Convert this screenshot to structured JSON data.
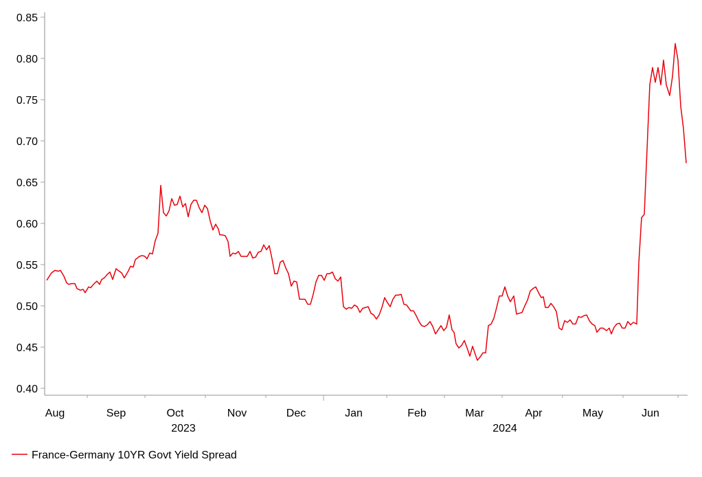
{
  "chart_data": {
    "type": "line",
    "title": "",
    "xlabel": "",
    "ylabel": "",
    "x_unit": "business-day index from start of series",
    "ylim": [
      0.4,
      0.85
    ],
    "xlim": [
      0,
      233
    ],
    "grid": false,
    "y_ticks": [
      "0.40",
      "0.45",
      "0.50",
      "0.55",
      "0.60",
      "0.65",
      "0.70",
      "0.75",
      "0.80",
      "0.85"
    ],
    "y_tick_values": [
      0.4,
      0.45,
      0.5,
      0.55,
      0.6,
      0.65,
      0.7,
      0.75,
      0.8,
      0.85
    ],
    "month_ticks": [
      15,
      36,
      58,
      80,
      101,
      124,
      145,
      166,
      188,
      210,
      230
    ],
    "year_boundary_tick": 101,
    "month_labels": [
      {
        "label": "Aug",
        "pos": 3.25
      },
      {
        "label": "Sep",
        "pos": 25.5
      },
      {
        "label": "Oct",
        "pos": 47
      },
      {
        "label": "Nov",
        "pos": 69.5
      },
      {
        "label": "Dec",
        "pos": 91
      },
      {
        "label": "Jan",
        "pos": 112
      },
      {
        "label": "Feb",
        "pos": 135
      },
      {
        "label": "Mar",
        "pos": 156
      },
      {
        "label": "Apr",
        "pos": 177.5
      },
      {
        "label": "May",
        "pos": 199
      },
      {
        "label": "Jun",
        "pos": 220
      }
    ],
    "year_labels": [
      {
        "label": "2023",
        "pos": 50
      },
      {
        "label": "2024",
        "pos": 167
      }
    ],
    "legend_position": "bottom-left",
    "series": [
      {
        "name": "France-Germany 10YR Govt Yield Spread",
        "color": "#e8000b",
        "x": [
          0.25,
          2,
          3.25,
          4.5,
          5.25,
          6.5,
          7.5,
          8.25,
          9.25,
          10.5,
          11.25,
          12.5,
          13.5,
          14.25,
          15.5,
          16.25,
          17.25,
          18.5,
          19.5,
          20.25,
          21.25,
          22.25,
          23.25,
          24.25,
          25.5,
          26.25,
          27.5,
          28.5,
          29.75,
          30.75,
          31.75,
          32.5,
          34,
          35,
          36,
          36.75,
          37.75,
          38.75,
          39.75,
          40.75,
          41.75,
          42.75,
          43.75,
          44.75,
          45.75,
          46.75,
          47.75,
          48.75,
          49.75,
          50.75,
          51.75,
          52.75,
          53.75,
          54.75,
          55.75,
          56.75,
          57.75,
          58.75,
          59.75,
          60.75,
          61.75,
          62.75,
          63.25,
          64.25,
          65.25,
          66.25,
          67,
          68,
          69,
          70,
          71,
          72.25,
          73.25,
          74.25,
          75.25,
          76.25,
          77.25,
          78.25,
          79.25,
          80.25,
          81.25,
          82.25,
          83.25,
          84.25,
          85.25,
          86.25,
          87.25,
          88.25,
          89.25,
          90.25,
          91.25,
          92.25,
          93.25,
          94.25,
          95.25,
          96.25,
          97.25,
          98.25,
          99.25,
          100.25,
          101.25,
          102.25,
          103.25,
          104.25,
          105.25,
          106.25,
          107.25,
          108.25,
          109.25,
          110.25,
          111.25,
          112.25,
          113.25,
          114.25,
          115.25,
          116.25,
          117.25,
          118.25,
          119.25,
          120.25,
          121.25,
          122.25,
          123.25,
          124.25,
          125.25,
          126.25,
          127.25,
          128.25,
          129.25,
          130.25,
          131.25,
          132.75,
          133.75,
          134.75,
          135.75,
          136.75,
          137.75,
          138.75,
          139.75,
          140.75,
          141.75,
          142.75,
          143.75,
          144.75,
          145.75,
          146.75,
          147.75,
          148.5,
          149.25,
          150.25,
          151.25,
          152.25,
          153.25,
          154.25,
          155.25,
          156.25,
          157,
          158,
          159,
          160,
          161,
          162,
          163,
          164,
          165,
          166,
          167,
          168,
          169,
          170.25,
          171.25,
          172.25,
          173.25,
          174.25,
          175.25,
          176.25,
          177.25,
          178.25,
          179.25,
          180.25,
          181,
          181.75,
          182.75,
          183.75,
          184.75,
          185.75,
          186.75,
          187.75,
          188.75,
          189.75,
          190.75,
          191.75,
          192.75,
          193.75,
          194.75,
          195.75,
          196.75,
          197.75,
          198.75,
          199.75,
          200.5,
          201.75,
          202.75,
          204,
          205,
          205.75,
          206.75,
          207.75,
          208.75,
          209.75,
          210.75,
          211.75,
          212.75,
          213.75,
          215,
          215.75,
          216.75,
          217.75,
          218.75,
          219.75,
          220.75,
          221.75,
          222.75,
          223.75,
          224.75,
          225.75,
          227,
          228,
          229,
          230,
          231,
          232,
          233
        ],
        "y": [
          0.531,
          0.54,
          0.543,
          0.542,
          0.543,
          0.536,
          0.528,
          0.526,
          0.527,
          0.527,
          0.521,
          0.519,
          0.52,
          0.516,
          0.523,
          0.522,
          0.526,
          0.53,
          0.526,
          0.532,
          0.534,
          0.538,
          0.541,
          0.532,
          0.545,
          0.543,
          0.54,
          0.534,
          0.541,
          0.548,
          0.547,
          0.556,
          0.56,
          0.561,
          0.56,
          0.557,
          0.564,
          0.563,
          0.579,
          0.588,
          0.646,
          0.613,
          0.609,
          0.615,
          0.63,
          0.622,
          0.623,
          0.633,
          0.62,
          0.624,
          0.608,
          0.623,
          0.628,
          0.628,
          0.619,
          0.613,
          0.622,
          0.618,
          0.603,
          0.592,
          0.599,
          0.593,
          0.586,
          0.586,
          0.585,
          0.578,
          0.56,
          0.564,
          0.563,
          0.566,
          0.56,
          0.56,
          0.56,
          0.566,
          0.558,
          0.559,
          0.565,
          0.566,
          0.574,
          0.568,
          0.573,
          0.557,
          0.539,
          0.539,
          0.553,
          0.555,
          0.546,
          0.539,
          0.524,
          0.53,
          0.529,
          0.508,
          0.508,
          0.508,
          0.502,
          0.502,
          0.514,
          0.529,
          0.537,
          0.537,
          0.531,
          0.539,
          0.539,
          0.541,
          0.533,
          0.53,
          0.535,
          0.499,
          0.496,
          0.498,
          0.497,
          0.501,
          0.499,
          0.492,
          0.497,
          0.498,
          0.499,
          0.491,
          0.489,
          0.484,
          0.489,
          0.498,
          0.51,
          0.504,
          0.499,
          0.508,
          0.513,
          0.513,
          0.514,
          0.502,
          0.501,
          0.494,
          0.494,
          0.488,
          0.481,
          0.476,
          0.475,
          0.477,
          0.481,
          0.475,
          0.466,
          0.471,
          0.476,
          0.47,
          0.474,
          0.489,
          0.471,
          0.468,
          0.454,
          0.449,
          0.452,
          0.458,
          0.449,
          0.439,
          0.451,
          0.441,
          0.434,
          0.438,
          0.443,
          0.443,
          0.476,
          0.478,
          0.485,
          0.498,
          0.512,
          0.512,
          0.523,
          0.512,
          0.505,
          0.512,
          0.49,
          0.491,
          0.492,
          0.5,
          0.507,
          0.518,
          0.521,
          0.523,
          0.516,
          0.51,
          0.511,
          0.498,
          0.498,
          0.503,
          0.499,
          0.493,
          0.473,
          0.471,
          0.482,
          0.48,
          0.483,
          0.478,
          0.478,
          0.487,
          0.486,
          0.488,
          0.489,
          0.482,
          0.478,
          0.476,
          0.468,
          0.473,
          0.473,
          0.47,
          0.473,
          0.466,
          0.474,
          0.478,
          0.479,
          0.473,
          0.473,
          0.481,
          0.477,
          0.48,
          0.478,
          0.552,
          0.607,
          0.611,
          0.69,
          0.768,
          0.789,
          0.771,
          0.789,
          0.768,
          0.798,
          0.768,
          0.755,
          0.778,
          0.818,
          0.798,
          0.742,
          0.715,
          0.673
        ]
      }
    ]
  }
}
